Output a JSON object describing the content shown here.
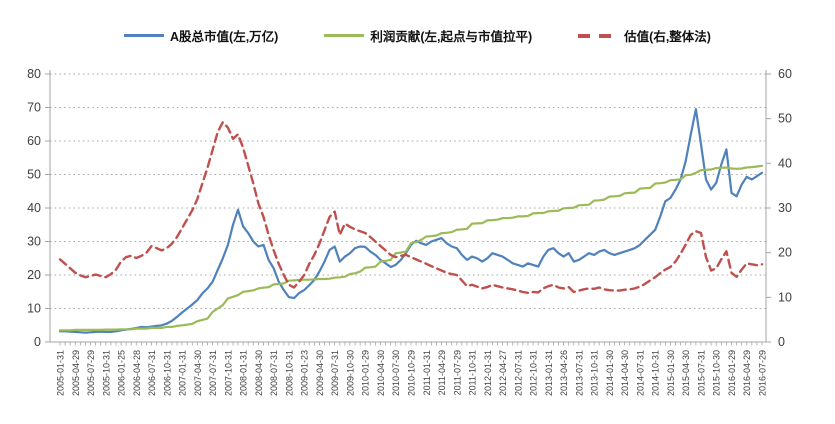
{
  "chart_data": {
    "type": "line",
    "title": "",
    "legend_position": "top",
    "grid": "horizontal-dotted",
    "x_labels": [
      "2005-01-31",
      "2005-04-29",
      "2005-07-29",
      "2005-10-31",
      "2006-01-25",
      "2006-04-28",
      "2006-07-31",
      "2006-10-31",
      "2007-01-31",
      "2007-04-30",
      "2007-07-31",
      "2007-10-31",
      "2008-01-31",
      "2008-04-30",
      "2008-07-31",
      "2008-10-31",
      "2009-01-23",
      "2009-04-30",
      "2009-07-31",
      "2009-10-30",
      "2010-01-29",
      "2010-04-30",
      "2010-07-30",
      "2010-10-29",
      "2011-01-31",
      "2011-04-29",
      "2011-07-29",
      "2011-10-31",
      "2012-01-31",
      "2012-04-27",
      "2012-07-31",
      "2012-10-31",
      "2013-01-31",
      "2013-04-26",
      "2013-07-31",
      "2013-10-31",
      "2014-01-30",
      "2014-04-30",
      "2014-07-31",
      "2014-10-31",
      "2015-01-30",
      "2015-04-30",
      "2015-07-31",
      "2015-10-30",
      "2016-01-29",
      "2016-04-29",
      "2016-07-29"
    ],
    "months_per_label": 3,
    "left_axis": {
      "min": 0,
      "max": 80,
      "ticks": [
        0,
        10,
        20,
        30,
        40,
        50,
        60,
        70,
        80
      ]
    },
    "right_axis": {
      "min": 0,
      "max": 60,
      "ticks": [
        0,
        10,
        20,
        30,
        40,
        50,
        60
      ]
    },
    "series": [
      {
        "name": "A股总市值(左,万亿)",
        "axis": "left",
        "color": "#4F81BD",
        "style": "solid",
        "values": [
          3.2,
          3.2,
          3.1,
          3.0,
          2.9,
          2.8,
          2.9,
          3.0,
          3.1,
          3.0,
          3.0,
          3.2,
          3.5,
          3.7,
          3.9,
          4.2,
          4.5,
          4.4,
          4.6,
          4.8,
          5.0,
          5.5,
          6.3,
          7.5,
          8.8,
          10.0,
          11.2,
          12.5,
          14.5,
          16.0,
          18.0,
          21.5,
          25.0,
          29.0,
          35.0,
          39.5,
          34.5,
          32.5,
          30.0,
          28.5,
          29.0,
          24.5,
          22.0,
          18.0,
          15.5,
          13.4,
          13.1,
          14.6,
          15.5,
          17.0,
          18.5,
          21.0,
          24.0,
          27.5,
          28.5,
          24.0,
          25.5,
          26.5,
          28.0,
          28.5,
          28.4,
          27.0,
          26.0,
          24.5,
          23.5,
          22.4,
          23.0,
          24.5,
          26.5,
          29.0,
          30.2,
          29.5,
          29.0,
          30.0,
          30.5,
          31.0,
          29.5,
          28.5,
          28.0,
          26.0,
          24.5,
          25.5,
          25.0,
          24.0,
          25.0,
          26.5,
          26.0,
          25.5,
          24.5,
          23.5,
          23.0,
          22.5,
          23.5,
          23.0,
          22.5,
          25.5,
          27.5,
          28.0,
          26.5,
          25.5,
          26.5,
          24.0,
          24.5,
          25.5,
          26.5,
          26.0,
          27.0,
          27.5,
          26.5,
          26.0,
          26.5,
          27.0,
          27.5,
          28.0,
          29.0,
          30.5,
          32.0,
          33.5,
          37.5,
          42.0,
          43.0,
          45.5,
          48.5,
          54.0,
          62.0,
          69.5,
          59.0,
          48.5,
          45.5,
          47.5,
          53.0,
          57.5,
          44.5,
          43.5,
          47.0,
          49.3,
          48.5,
          49.5,
          50.5
        ]
      },
      {
        "name": "利润贡献(左,起点与市值拉平)",
        "axis": "left",
        "color": "#9BBB59",
        "style": "solid",
        "values": [
          3.5,
          3.5,
          3.5,
          3.6,
          3.6,
          3.6,
          3.6,
          3.6,
          3.6,
          3.7,
          3.7,
          3.7,
          3.8,
          3.8,
          3.8,
          4.0,
          4.0,
          4.0,
          4.2,
          4.2,
          4.2,
          4.5,
          4.5,
          4.8,
          5.0,
          5.2,
          5.4,
          6.2,
          6.6,
          7.0,
          9.0,
          10.0,
          11.0,
          13.0,
          13.5,
          14.0,
          15.0,
          15.2,
          15.4,
          16.0,
          16.2,
          16.4,
          17.2,
          17.3,
          17.5,
          18.3,
          18.4,
          18.5,
          18.6,
          18.6,
          18.7,
          18.8,
          18.8,
          18.9,
          19.2,
          19.3,
          19.5,
          20.3,
          20.5,
          21.0,
          22.2,
          22.3,
          22.5,
          24.0,
          24.2,
          24.5,
          26.5,
          26.7,
          27.0,
          29.5,
          29.8,
          30.5,
          31.5,
          31.6,
          31.8,
          32.5,
          32.6,
          32.8,
          33.5,
          33.6,
          33.8,
          35.3,
          35.4,
          35.5,
          36.3,
          36.4,
          36.5,
          37.0,
          37.0,
          37.1,
          37.5,
          37.5,
          37.6,
          38.4,
          38.5,
          38.5,
          39.0,
          39.1,
          39.2,
          39.9,
          40.0,
          40.1,
          40.8,
          40.9,
          41.0,
          42.2,
          42.3,
          42.5,
          43.4,
          43.5,
          43.6,
          44.4,
          44.5,
          44.6,
          45.8,
          45.9,
          46.0,
          47.3,
          47.4,
          47.6,
          48.3,
          48.4,
          48.6,
          49.8,
          49.9,
          50.5,
          51.3,
          51.4,
          51.5,
          51.9,
          52.0,
          52.1,
          51.8,
          51.7,
          51.8,
          52.1,
          52.2,
          52.4,
          52.6
        ]
      },
      {
        "name": "估值(右,整体法)",
        "axis": "right",
        "color": "#C0504D",
        "style": "dashed",
        "values": [
          18.5,
          17.5,
          16.5,
          15.5,
          14.9,
          14.5,
          14.8,
          15.1,
          14.8,
          14.5,
          15.2,
          16.2,
          18.0,
          19.0,
          19.3,
          18.8,
          19.3,
          20.0,
          21.5,
          21.0,
          20.5,
          21.0,
          22.0,
          23.5,
          25.5,
          27.5,
          29.5,
          32.0,
          35.5,
          39.0,
          43.0,
          47.0,
          49.2,
          48.0,
          45.5,
          46.5,
          43.5,
          39.5,
          35.5,
          31.0,
          28.0,
          24.0,
          20.5,
          17.5,
          15.0,
          12.8,
          12.2,
          13.5,
          15.0,
          17.5,
          19.5,
          22.0,
          25.0,
          28.0,
          29.2,
          24.0,
          26.5,
          25.8,
          25.2,
          24.8,
          24.4,
          23.5,
          22.5,
          21.5,
          20.5,
          19.5,
          19.0,
          19.3,
          19.5,
          19.0,
          18.5,
          18.0,
          17.5,
          17.0,
          16.5,
          16.0,
          15.5,
          15.2,
          15.0,
          13.8,
          12.5,
          12.8,
          12.4,
          12.0,
          12.3,
          12.8,
          12.5,
          12.2,
          12.0,
          11.8,
          11.5,
          11.2,
          11.0,
          11.2,
          11.1,
          12.0,
          12.5,
          12.8,
          12.2,
          12.0,
          12.3,
          11.2,
          11.5,
          11.8,
          12.0,
          11.9,
          12.2,
          11.8,
          11.6,
          11.5,
          11.5,
          11.7,
          11.8,
          12.0,
          12.4,
          13.0,
          13.8,
          14.5,
          15.4,
          16.2,
          16.8,
          18.0,
          19.8,
          21.8,
          24.0,
          24.8,
          24.4,
          19.0,
          16.0,
          16.5,
          18.5,
          20.3,
          15.5,
          14.6,
          16.2,
          17.6,
          17.4,
          17.2,
          17.4
        ]
      }
    ],
    "colors": {
      "axis_line": "#a6a6a6",
      "gridline": "#a6a6a6",
      "axis_text": "#3f3f3f"
    }
  }
}
